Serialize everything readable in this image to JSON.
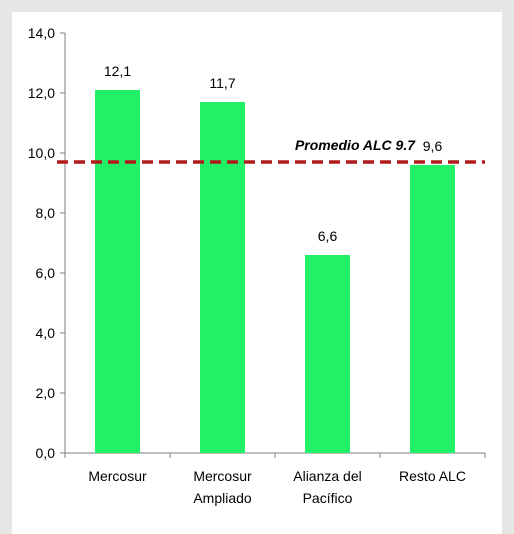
{
  "colors": {
    "bar": "#22f066",
    "reference_line": "#b01c1c",
    "axis": "#7f7f7f"
  },
  "chart_data": {
    "type": "bar",
    "categories": [
      [
        "Mercosur"
      ],
      [
        "Mercosur",
        "Ampliado"
      ],
      [
        "Alianza del",
        "Pacífico"
      ],
      [
        "Resto ALC"
      ]
    ],
    "values": [
      12.1,
      11.7,
      6.6,
      9.6
    ],
    "value_labels": [
      "12,1",
      "11,7",
      "6,6",
      "9,6"
    ],
    "title": "",
    "xlabel": "",
    "ylabel": "",
    "ylim": [
      0,
      14
    ],
    "yticks": [
      0,
      2,
      4,
      6,
      8,
      10,
      12,
      14
    ],
    "ytick_labels": [
      "0,0",
      "2,0",
      "4,0",
      "6,0",
      "8,0",
      "10,0",
      "12,0",
      "14,0"
    ],
    "grid": false,
    "reference_line": {
      "value": 9.7,
      "label": "Promedio ALC 9.7",
      "style": "dashed"
    }
  }
}
